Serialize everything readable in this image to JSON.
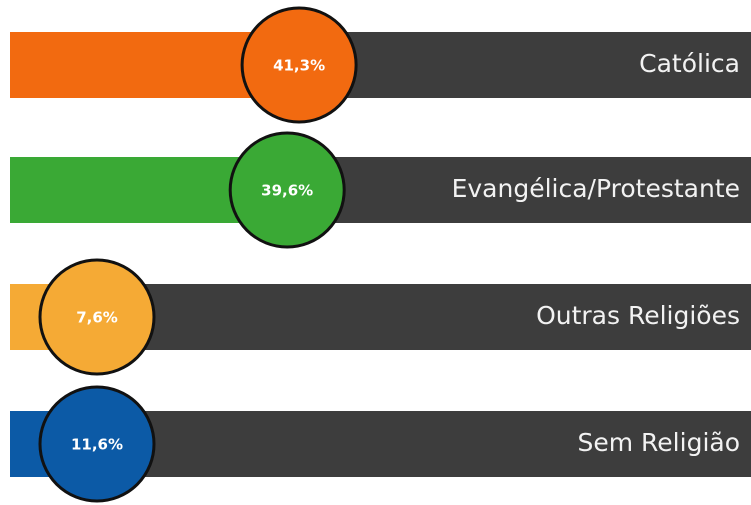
{
  "chart_data": {
    "type": "bar",
    "orientation": "horizontal",
    "categories": [
      "Católica",
      "Evangélica/Protestante",
      "Outras Religiões",
      "Sem Religião"
    ],
    "values": [
      41.3,
      39.6,
      7.6,
      11.6
    ],
    "value_labels": [
      "41,3%",
      "39,6%",
      "7,6%",
      "11,6%"
    ],
    "colors": [
      "#f26a10",
      "#3aa935",
      "#f5aa35",
      "#0c5aa6"
    ],
    "track_color": "#3d3d3d"
  }
}
